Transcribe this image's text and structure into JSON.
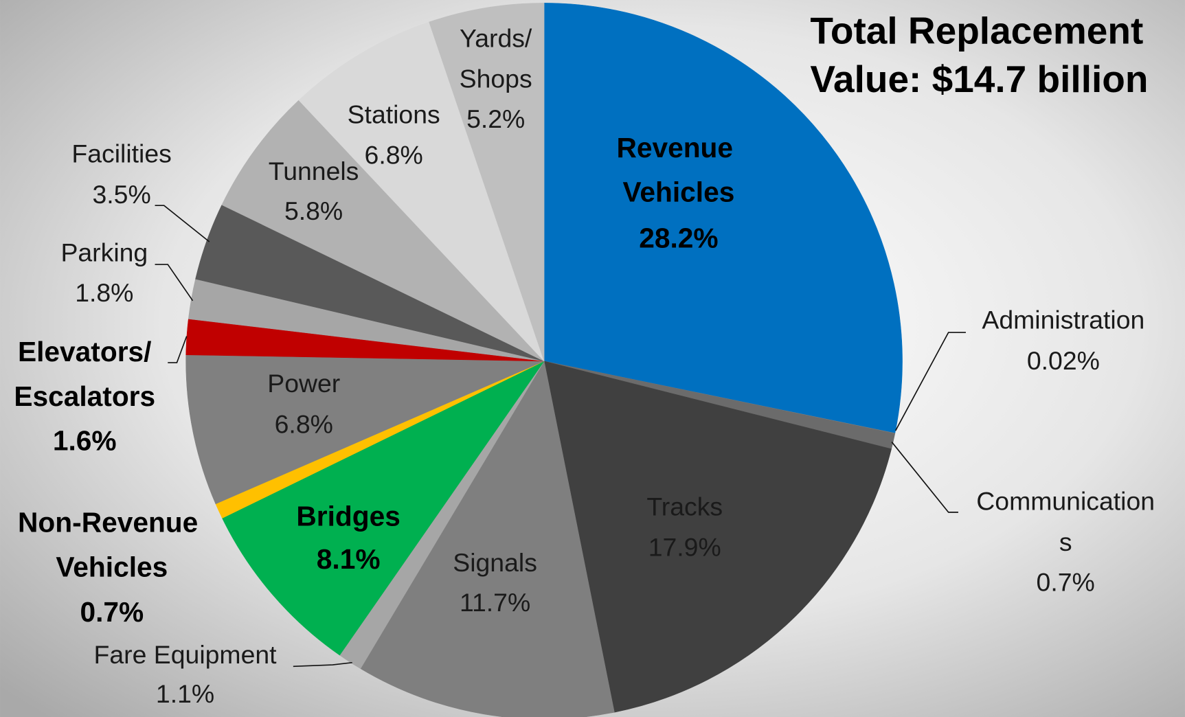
{
  "chart_data": {
    "type": "pie",
    "title": "Total Replacement Value: $14.7 billion",
    "categories": [
      "Revenue Vehicles",
      "Administration",
      "Communications",
      "Tracks",
      "Signals",
      "Fare Equipment",
      "Bridges",
      "Non-Revenue Vehicles",
      "Power",
      "Elevators/Escalators",
      "Parking",
      "Facilities",
      "Tunnels",
      "Stations",
      "Yards/Shops"
    ],
    "values": [
      28.2,
      0.02,
      0.7,
      17.9,
      11.7,
      1.1,
      8.1,
      0.7,
      6.8,
      1.6,
      1.8,
      3.5,
      5.8,
      6.8,
      5.2
    ],
    "value_labels": [
      "28.2%",
      "0.02%",
      "0.7%",
      "17.9%",
      "11.7%",
      "1.1%",
      "8.1%",
      "0.7%",
      "6.8%",
      "1.6%",
      "1.8%",
      "3.5%",
      "5.8%",
      "6.8%",
      "5.2%"
    ],
    "colors": [
      "#0070c0",
      "#7f7f7f",
      "#6b6b6b",
      "#404040",
      "#7f7f7f",
      "#a6a6a6",
      "#00b050",
      "#ffc000",
      "#808080",
      "#c00000",
      "#a6a6a6",
      "#595959",
      "#b2b2b2",
      "#d9d9d9",
      "#bfbfbf"
    ]
  }
}
